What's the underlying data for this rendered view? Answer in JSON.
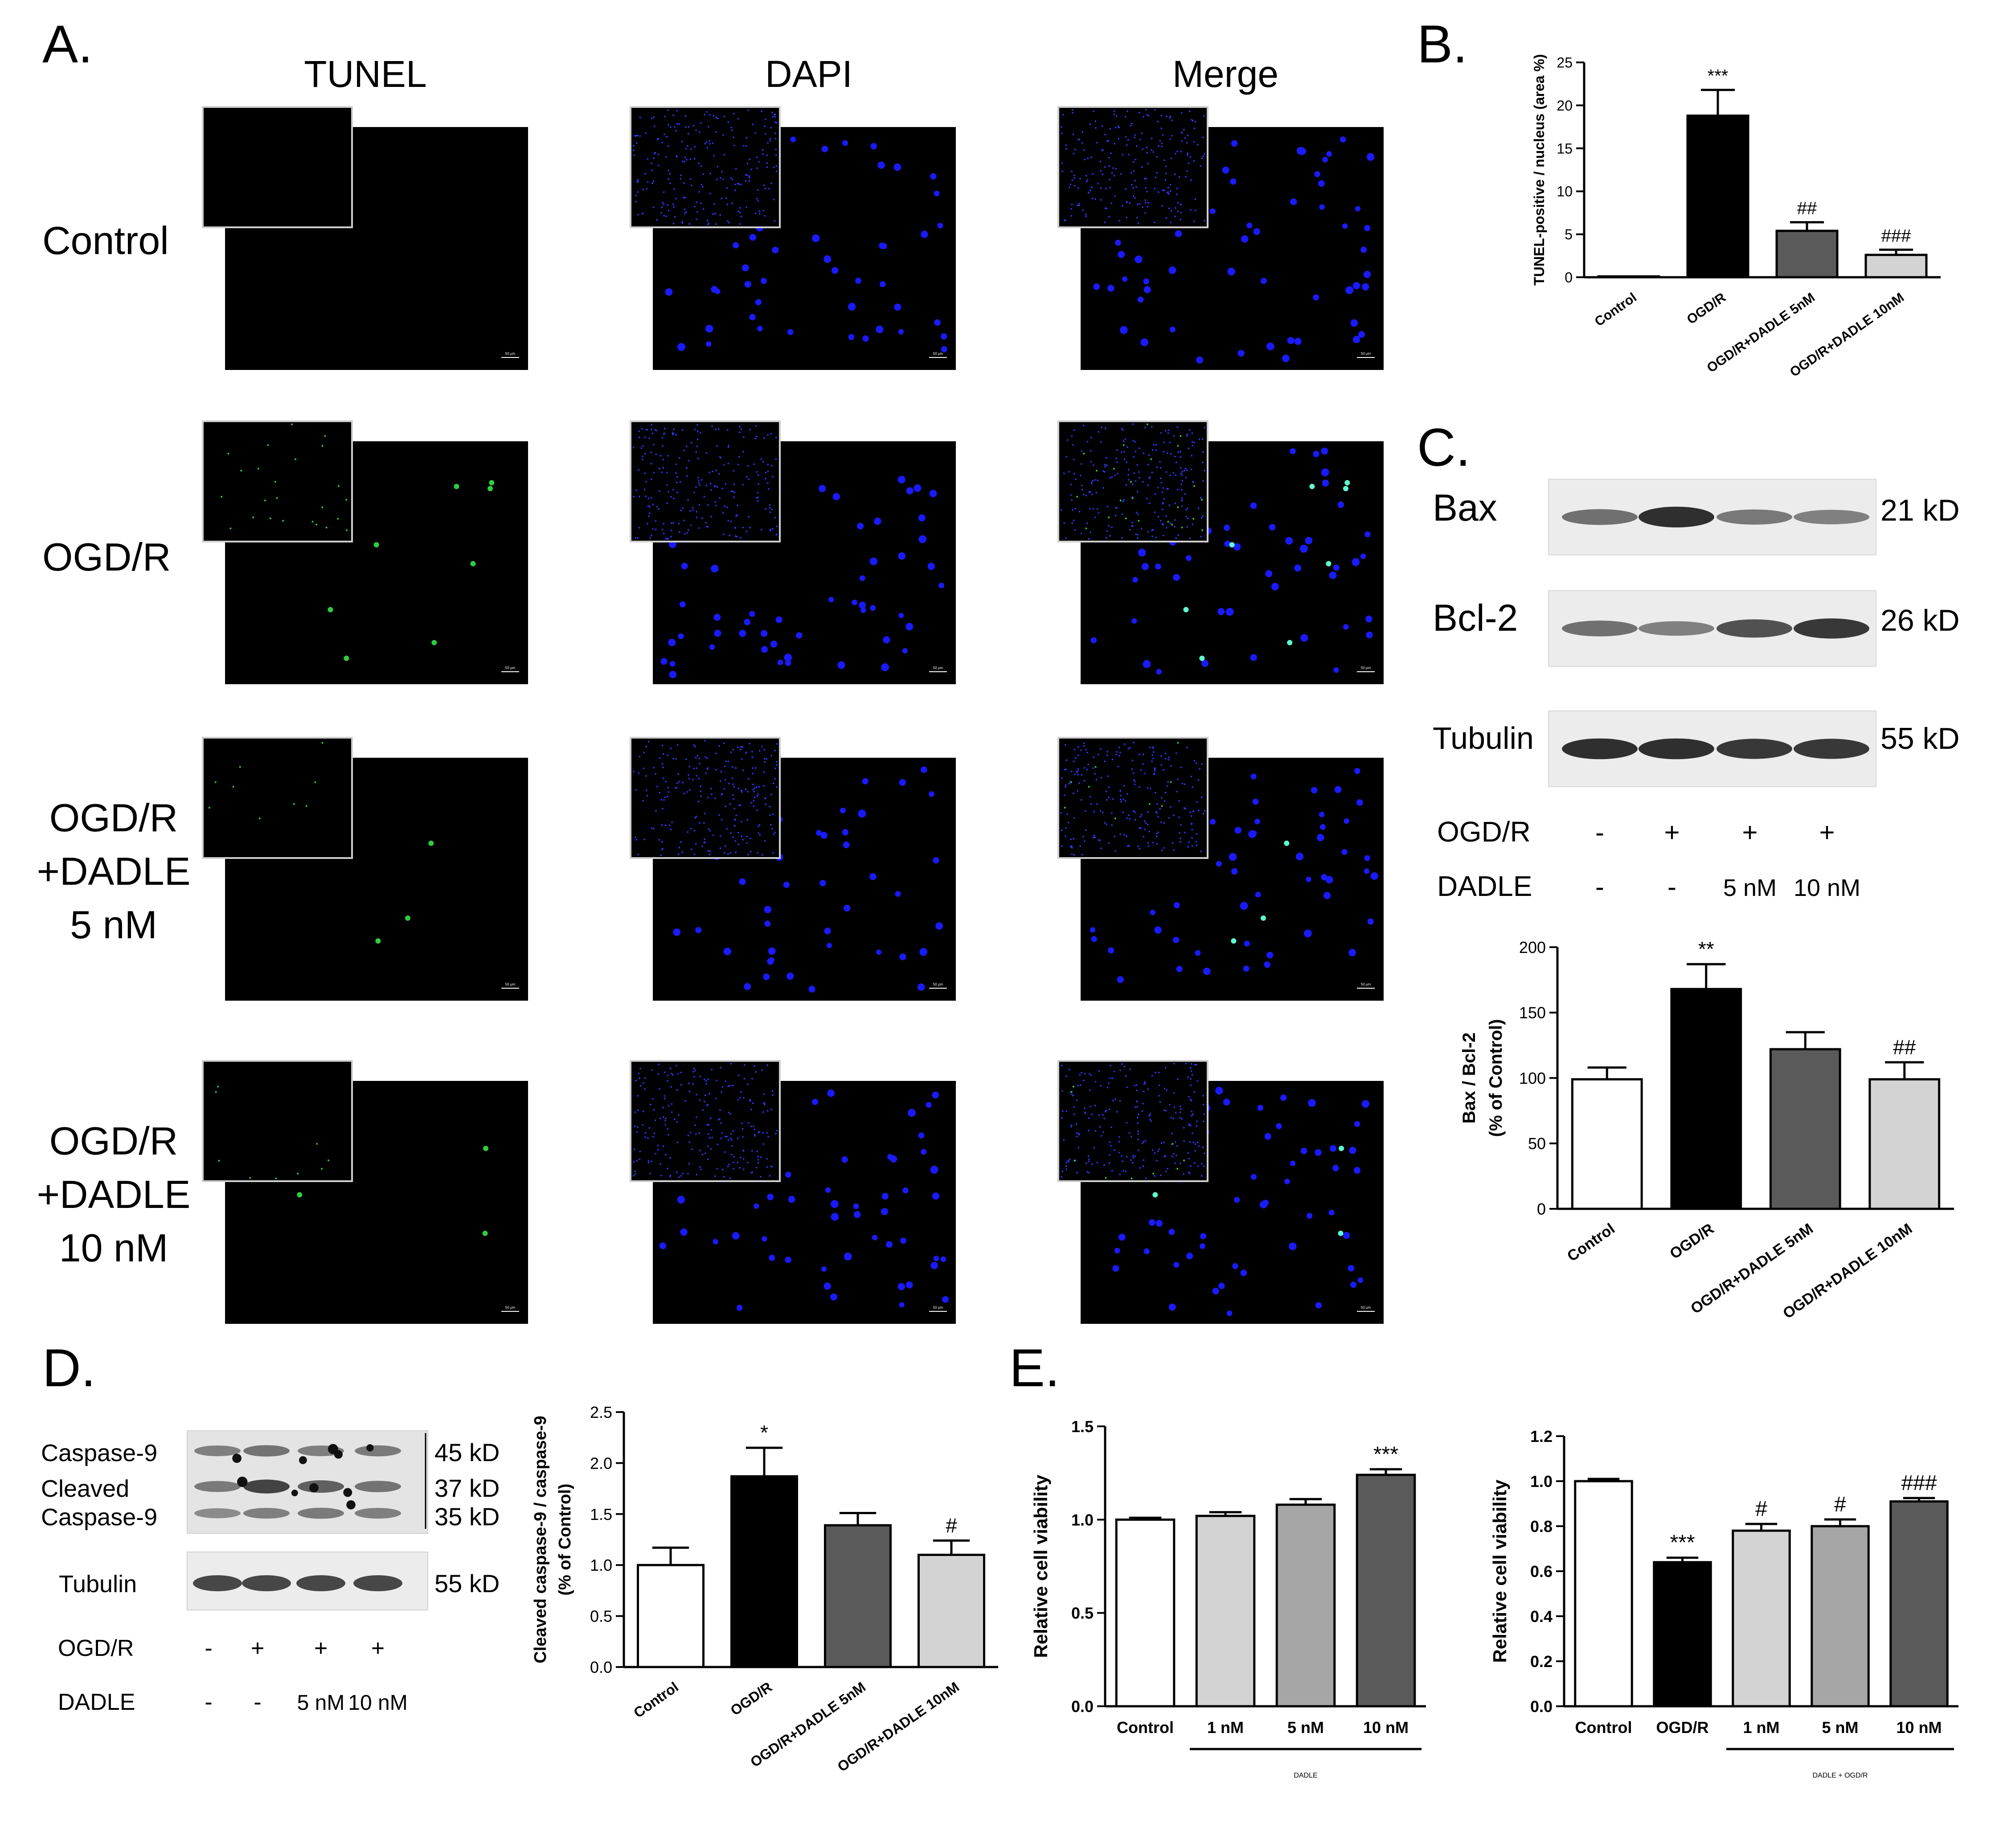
{
  "panel_letters": {
    "A": "A.",
    "B": "B.",
    "C": "C.",
    "D": "D.",
    "E": "E."
  },
  "panel_a": {
    "columns": [
      "TUNEL",
      "DAPI",
      "Merge"
    ],
    "rows": [
      {
        "lines": [
          "Control"
        ]
      },
      {
        "lines": [
          "OGD/R"
        ]
      },
      {
        "lines": [
          "OGD/R",
          "+DADLE",
          "5 nM"
        ]
      },
      {
        "lines": [
          "OGD/R",
          "+DADLE",
          "10 nM"
        ]
      }
    ],
    "scale_bar_text": "50 μm",
    "colors": {
      "tunel": "#2ecc40",
      "dapi": "#1a1aff",
      "background": "#000000"
    }
  },
  "panel_c_blot": {
    "proteins": [
      {
        "name": "Bax",
        "size": "21 kD",
        "intensity": [
          0.55,
          0.95,
          0.5,
          0.45
        ]
      },
      {
        "name": "Bcl-2",
        "size": "26 kD",
        "intensity": [
          0.55,
          0.45,
          0.75,
          0.9
        ]
      },
      {
        "name": "Tubulin",
        "size": "55 kD",
        "intensity": [
          0.95,
          0.95,
          0.9,
          0.9
        ]
      }
    ],
    "conditions": [
      {
        "label": "OGD/R",
        "values": [
          "-",
          "+",
          "+",
          "+"
        ]
      },
      {
        "label": "DADLE",
        "values": [
          "-",
          "-",
          "5 nM",
          "10 nM"
        ]
      }
    ]
  },
  "panel_d_blot": {
    "proteins": [
      {
        "name": "Caspase-9",
        "size": "45 kD"
      },
      {
        "name": "Cleaved",
        "size": "37 kD"
      },
      {
        "name": "Caspase-9",
        "size": "35 kD"
      },
      {
        "name": "Tubulin",
        "size": "55 kD"
      }
    ],
    "conditions": [
      {
        "label": "OGD/R",
        "values": [
          "-",
          "+",
          "+",
          "+"
        ]
      },
      {
        "label": "DADLE",
        "values": [
          "-",
          "-",
          "5 nM",
          "10 nM"
        ]
      }
    ]
  },
  "chart_data": [
    {
      "id": "B",
      "type": "bar",
      "categories": [
        "Control",
        "OGD/R",
        "OGD/R+DADLE 5nM",
        "OGD/R+DADLE 10nM"
      ],
      "values": [
        0.1,
        18.8,
        5.4,
        2.6
      ],
      "errors": [
        0.0,
        3.0,
        1.0,
        0.6
      ],
      "annotations": [
        "",
        "***",
        "##",
        "###"
      ],
      "colors": [
        "#ffffff",
        "#000000",
        "#5a5a5a",
        "#d3d3d3"
      ],
      "ylabel": "TUNEL-positive / nucleus (area %)",
      "ylim": [
        0,
        25
      ],
      "yticks": [
        0,
        5,
        10,
        15,
        20,
        25
      ]
    },
    {
      "id": "C",
      "type": "bar",
      "categories": [
        "Control",
        "OGD/R",
        "OGD/R+DADLE 5nM",
        "OGD/R+DADLE 10nM"
      ],
      "values": [
        99,
        168,
        122,
        99
      ],
      "errors": [
        9,
        19,
        13,
        13
      ],
      "annotations": [
        "",
        "**",
        "",
        "##"
      ],
      "colors": [
        "#ffffff",
        "#000000",
        "#5a5a5a",
        "#d3d3d3"
      ],
      "ylabel": [
        "Bax / Bcl-2",
        "(% of Control)"
      ],
      "ylim": [
        0,
        200
      ],
      "yticks": [
        0,
        50,
        100,
        150,
        200
      ]
    },
    {
      "id": "D",
      "type": "bar",
      "categories": [
        "Control",
        "OGD/R",
        "OGD/R+DADLE 5nM",
        "OGD/R+DADLE 10nM"
      ],
      "values": [
        1.0,
        1.87,
        1.39,
        1.1
      ],
      "errors": [
        0.17,
        0.28,
        0.12,
        0.14
      ],
      "annotations": [
        "",
        "*",
        "",
        "#"
      ],
      "colors": [
        "#ffffff",
        "#000000",
        "#5a5a5a",
        "#d3d3d3"
      ],
      "ylabel": [
        "Cleaved caspase-9 / caspase-9",
        "(% of Control)"
      ],
      "ylim": [
        0,
        2.5
      ],
      "yticks": [
        "0.0",
        "0.5",
        "1.0",
        "1.5",
        "2.0",
        "2.5"
      ]
    },
    {
      "id": "E1",
      "type": "bar",
      "categories": [
        "Control",
        "1 nM",
        "5 nM",
        "10 nM"
      ],
      "values": [
        1.0,
        1.02,
        1.08,
        1.24
      ],
      "errors": [
        0.01,
        0.02,
        0.03,
        0.03
      ],
      "annotations": [
        "",
        "",
        "",
        "***"
      ],
      "colors": [
        "#ffffff",
        "#d3d3d3",
        "#a6a6a6",
        "#5a5a5a"
      ],
      "ylabel": "Relative cell viability",
      "ylim": [
        0,
        1.5
      ],
      "yticks": [
        "0.0",
        "0.5",
        "1.0",
        "1.5"
      ],
      "group_label": "DADLE",
      "group_start": 1
    },
    {
      "id": "E2",
      "type": "bar",
      "categories": [
        "Control",
        "OGD/R",
        "1 nM",
        "5 nM",
        "10 nM"
      ],
      "values": [
        1.0,
        0.64,
        0.78,
        0.8,
        0.91
      ],
      "errors": [
        0.01,
        0.02,
        0.03,
        0.03,
        0.015
      ],
      "annotations": [
        "",
        "***",
        "#",
        "#",
        "###"
      ],
      "colors": [
        "#ffffff",
        "#000000",
        "#d3d3d3",
        "#a6a6a6",
        "#5a5a5a"
      ],
      "ylabel": "Relative cell viability",
      "ylim": [
        0,
        1.2
      ],
      "yticks": [
        "0.0",
        "0.2",
        "0.4",
        "0.6",
        "0.8",
        "1.0",
        "1.2"
      ],
      "group_label": "DADLE + OGD/R",
      "group_start": 2
    }
  ]
}
